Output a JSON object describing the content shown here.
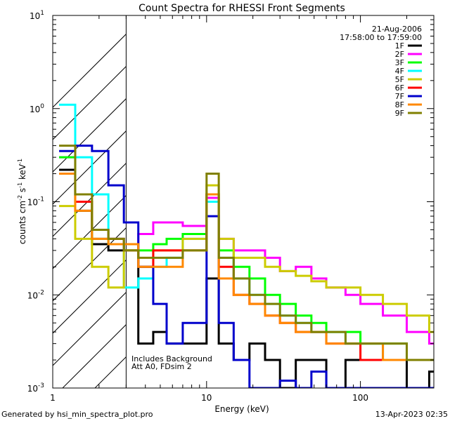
{
  "chart_data": {
    "type": "line",
    "title": "Count Spectra for RHESSI Front Segments",
    "xlabel": "Energy (keV)",
    "ylabel": "counts cm-2 s-1 keV-1",
    "xscale": "log",
    "yscale": "log",
    "xlim": [
      1,
      300
    ],
    "ylim": [
      0.001,
      10
    ],
    "x_ticks": [
      {
        "value": 1,
        "label": "1"
      },
      {
        "value": 10,
        "label": "10"
      },
      {
        "value": 100,
        "label": "100"
      }
    ],
    "y_ticks": [
      {
        "value": 10,
        "label": "10",
        "exp": "1"
      },
      {
        "value": 1,
        "label": "10",
        "exp": "0"
      },
      {
        "value": 0.1,
        "label": "10",
        "exp": "-1"
      },
      {
        "value": 0.01,
        "label": "10",
        "exp": "-2"
      },
      {
        "value": 0.001,
        "label": "10",
        "exp": "-3"
      }
    ],
    "hatched_region_kev": [
      1,
      3
    ],
    "date": "21-Aug-2006",
    "time_range": "17:58:00 to 17:59:00",
    "annotations": [
      "Includes Background",
      "Att A0, FDsim 2"
    ],
    "series": [
      {
        "name": "1F",
        "color": "#000000",
        "values": [
          0.22,
          0.08,
          0.035,
          0.03,
          0.035,
          0.003,
          0.004,
          0.003,
          0.003,
          0.015,
          0.003,
          0.002,
          0.003,
          0.002,
          0.001,
          0.002,
          0.002,
          0.001,
          0.002,
          0.002,
          0.002,
          0.001,
          0.0015
        ]
      },
      {
        "name": "2F",
        "color": "#ff00ff",
        "values": [
          0.3,
          0.1,
          0.04,
          0.04,
          0.035,
          0.045,
          0.06,
          0.06,
          0.055,
          0.11,
          0.04,
          0.03,
          0.03,
          0.025,
          0.018,
          0.02,
          0.015,
          0.012,
          0.01,
          0.008,
          0.006,
          0.004,
          0.003
        ]
      },
      {
        "name": "3F",
        "color": "#00ff00",
        "values": [
          0.3,
          0.1,
          0.04,
          0.035,
          0.03,
          0.03,
          0.035,
          0.04,
          0.045,
          0.12,
          0.03,
          0.02,
          0.015,
          0.01,
          0.008,
          0.006,
          0.005,
          0.004,
          0.004,
          0.003,
          0.003,
          0.002,
          0.002
        ]
      },
      {
        "name": "4F",
        "color": "#00ffff",
        "values": [
          1.1,
          0.3,
          0.12,
          0.04,
          0.012,
          0.015,
          0.02,
          0.025,
          0.04,
          0.1,
          0.025,
          0.015,
          0.01,
          0.008,
          0.006,
          0.005,
          0.004,
          0.004,
          0.003,
          0.003,
          0.002,
          0.002,
          0.002
        ]
      },
      {
        "name": "5F",
        "color": "#cccc00",
        "values": [
          0.09,
          0.04,
          0.02,
          0.012,
          0.03,
          0.02,
          0.03,
          0.03,
          0.04,
          0.15,
          0.04,
          0.025,
          0.025,
          0.02,
          0.018,
          0.016,
          0.014,
          0.012,
          0.012,
          0.01,
          0.008,
          0.006,
          0.004
        ]
      },
      {
        "name": "6F",
        "color": "#ff0000",
        "values": [
          0.2,
          0.1,
          0.05,
          0.04,
          0.03,
          0.02,
          0.03,
          0.03,
          0.03,
          0.12,
          0.02,
          0.01,
          0.008,
          0.006,
          0.005,
          0.004,
          0.004,
          0.003,
          0.003,
          0.002,
          0.002,
          0.002,
          0.002
        ]
      },
      {
        "name": "7F",
        "color": "#0000cc",
        "values": [
          0.35,
          0.4,
          0.35,
          0.15,
          0.06,
          0.02,
          0.008,
          0.003,
          0.005,
          0.07,
          0.005,
          0.002,
          0.001,
          0.001,
          0.0012,
          0.001,
          0.0015,
          0.001,
          0.001,
          0.001,
          0.001,
          0.001,
          0.001
        ]
      },
      {
        "name": "8F",
        "color": "#ff8800",
        "values": [
          0.2,
          0.08,
          0.04,
          0.035,
          0.035,
          0.02,
          0.02,
          0.02,
          0.03,
          0.12,
          0.015,
          0.01,
          0.008,
          0.006,
          0.005,
          0.004,
          0.004,
          0.003,
          0.003,
          0.003,
          0.002,
          0.002,
          0.002
        ]
      },
      {
        "name": "9F",
        "color": "#808000",
        "values": [
          0.4,
          0.12,
          0.05,
          0.04,
          0.03,
          0.025,
          0.025,
          0.025,
          0.03,
          0.2,
          0.025,
          0.015,
          0.01,
          0.008,
          0.006,
          0.005,
          0.004,
          0.004,
          0.003,
          0.003,
          0.003,
          0.002,
          0.002
        ]
      }
    ],
    "x": [
      1.1,
      1.4,
      1.8,
      2.3,
      2.9,
      3.6,
      4.5,
      5.5,
      7,
      10,
      12,
      15,
      19,
      24,
      30,
      38,
      48,
      60,
      80,
      100,
      140,
      200,
      280
    ]
  },
  "footer": {
    "generator": "Generated by hsi_min_spectra_plot.pro",
    "timestamp": "13-Apr-2023 02:35"
  }
}
